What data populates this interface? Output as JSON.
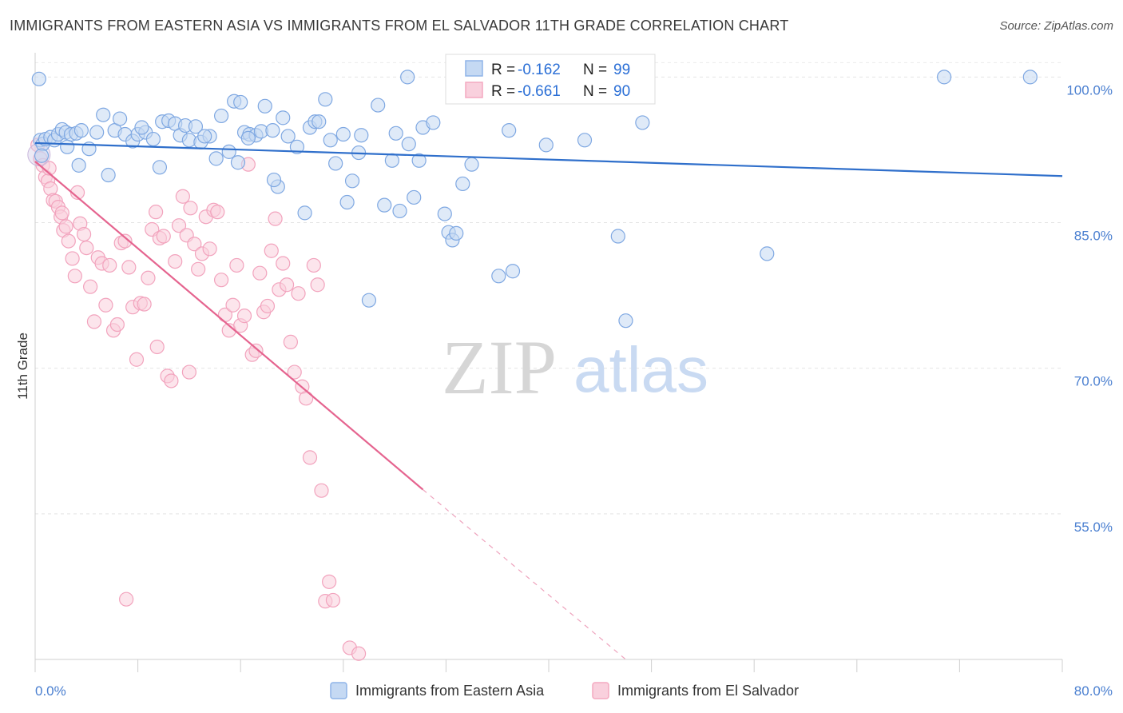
{
  "header": {
    "title": "IMMIGRANTS FROM EASTERN ASIA VS IMMIGRANTS FROM EL SALVADOR 11TH GRADE CORRELATION CHART",
    "source": "Source: ZipAtlas.com"
  },
  "watermark": {
    "zip": "ZIP",
    "atlas": "atlas"
  },
  "legend_box": {
    "r_label": "R =",
    "n_label": "N =",
    "rows": [
      {
        "r": "-0.162",
        "n": "99",
        "color": "#8fb4e8"
      },
      {
        "r": "-0.661",
        "n": "90",
        "color": "#f4a9c0"
      }
    ]
  },
  "bottom_legend": [
    {
      "label": "Immigrants from Eastern Asia",
      "color": "#8fb4e8"
    },
    {
      "label": "Immigrants from El Salvador",
      "color": "#f4a9c0"
    }
  ],
  "chart_data": {
    "type": "scatter",
    "title": "IMMIGRANTS FROM EASTERN ASIA VS IMMIGRANTS FROM EL SALVADOR 11TH GRADE CORRELATION CHART",
    "ylabel": "11th Grade",
    "xlim": [
      0,
      80
    ],
    "ylim": [
      40,
      102.5
    ],
    "x_tick_labels": [
      {
        "value": 0,
        "label": "0.0%"
      },
      {
        "value": 80,
        "label": "80.0%"
      }
    ],
    "x_minor_ticks": [
      0,
      8,
      16,
      24,
      32,
      40,
      48,
      56,
      64,
      72,
      80
    ],
    "y_ticks": [
      {
        "value": 100,
        "label": "100.0%"
      },
      {
        "value": 85,
        "label": "85.0%"
      },
      {
        "value": 70,
        "label": "70.0%"
      },
      {
        "value": 55,
        "label": "55.0%"
      }
    ],
    "grid": true,
    "legend_position": "top-center",
    "colors": {
      "blue": "#6a9ee0",
      "pink": "#ea6f98",
      "blue_fill": "#c5d9f3",
      "pink_fill": "#f9d0dd"
    },
    "series": [
      {
        "name": "Immigrants from Eastern Asia",
        "r": -0.162,
        "n": 99,
        "trend": {
          "x": [
            0,
            80
          ],
          "y": [
            93.2,
            89.8
          ]
        },
        "points": [
          [
            0.4,
            93.5
          ],
          [
            0.6,
            93.1
          ],
          [
            0.8,
            93.6
          ],
          [
            1.2,
            93.8
          ],
          [
            1.5,
            93.5
          ],
          [
            1.8,
            94.1
          ],
          [
            2.1,
            94.6
          ],
          [
            2.4,
            94.3
          ],
          [
            2.8,
            94.1
          ],
          [
            3.2,
            94.2
          ],
          [
            3.6,
            94.5
          ],
          [
            4.2,
            92.6
          ],
          [
            5.3,
            96.1
          ],
          [
            6.2,
            94.5
          ],
          [
            6.6,
            95.7
          ],
          [
            7.0,
            94.1
          ],
          [
            7.6,
            93.4
          ],
          [
            8.0,
            94.1
          ],
          [
            8.6,
            94.3
          ],
          [
            9.2,
            93.6
          ],
          [
            9.9,
            95.4
          ],
          [
            10.4,
            95.5
          ],
          [
            10.9,
            95.2
          ],
          [
            11.3,
            94.0
          ],
          [
            11.7,
            95.0
          ],
          [
            12.0,
            93.5
          ],
          [
            12.5,
            94.9
          ],
          [
            12.9,
            93.3
          ],
          [
            13.6,
            93.9
          ],
          [
            14.1,
            91.6
          ],
          [
            14.5,
            96.0
          ],
          [
            15.1,
            92.3
          ],
          [
            15.5,
            97.5
          ],
          [
            16.0,
            97.4
          ],
          [
            16.3,
            94.3
          ],
          [
            16.7,
            94.1
          ],
          [
            17.2,
            94.0
          ],
          [
            17.6,
            94.4
          ],
          [
            17.9,
            97.0
          ],
          [
            18.5,
            94.5
          ],
          [
            18.9,
            88.7
          ],
          [
            19.3,
            95.8
          ],
          [
            19.7,
            93.9
          ],
          [
            20.4,
            92.8
          ],
          [
            21.0,
            86.0
          ],
          [
            21.4,
            94.8
          ],
          [
            21.8,
            95.4
          ],
          [
            22.1,
            95.4
          ],
          [
            22.6,
            97.7
          ],
          [
            23.0,
            93.5
          ],
          [
            23.4,
            91.1
          ],
          [
            24.0,
            94.1
          ],
          [
            24.3,
            87.1
          ],
          [
            24.7,
            89.3
          ],
          [
            25.2,
            92.2
          ],
          [
            26.0,
            77.0
          ],
          [
            26.7,
            97.1
          ],
          [
            27.2,
            86.8
          ],
          [
            27.8,
            91.4
          ],
          [
            28.1,
            94.2
          ],
          [
            28.4,
            86.2
          ],
          [
            29.1,
            93.1
          ],
          [
            29.5,
            87.6
          ],
          [
            29.9,
            91.4
          ],
          [
            30.2,
            94.8
          ],
          [
            31.0,
            95.3
          ],
          [
            31.9,
            85.9
          ],
          [
            32.2,
            84.0
          ],
          [
            32.5,
            83.2
          ],
          [
            32.8,
            83.9
          ],
          [
            33.3,
            89.0
          ],
          [
            34.0,
            91.0
          ],
          [
            36.1,
            79.5
          ],
          [
            36.9,
            94.5
          ],
          [
            37.2,
            80.0
          ],
          [
            39.8,
            93.0
          ],
          [
            42.8,
            93.5
          ],
          [
            45.4,
            83.6
          ],
          [
            46.0,
            74.9
          ],
          [
            47.3,
            95.3
          ],
          [
            57.0,
            81.8
          ],
          [
            70.8,
            100.0
          ],
          [
            77.5,
            100.0
          ],
          [
            0.3,
            99.8
          ],
          [
            0.5,
            91.9
          ],
          [
            3.4,
            90.9
          ],
          [
            5.7,
            89.9
          ],
          [
            9.7,
            90.7
          ],
          [
            18.6,
            89.4
          ],
          [
            2.5,
            92.8
          ],
          [
            4.8,
            94.3
          ],
          [
            8.3,
            94.8
          ],
          [
            15.8,
            91.2
          ],
          [
            29.0,
            100.0
          ],
          [
            36.5,
            100.0
          ],
          [
            38.0,
            100.0
          ],
          [
            25.4,
            94.0
          ],
          [
            16.6,
            93.7
          ],
          [
            13.2,
            93.9
          ]
        ]
      },
      {
        "name": "Immigrants from El Salvador",
        "r": -0.661,
        "n": 90,
        "trend": {
          "x": [
            0,
            30.2
          ],
          "y": [
            91.3,
            57.5
          ]
        },
        "trend_extension": {
          "x": [
            30.2,
            46.0
          ],
          "y": [
            57.5,
            40.0
          ]
        },
        "points": [
          [
            0.2,
            93.0
          ],
          [
            0.4,
            91.6
          ],
          [
            0.6,
            90.9
          ],
          [
            0.8,
            89.7
          ],
          [
            1.0,
            89.3
          ],
          [
            1.2,
            88.5
          ],
          [
            1.4,
            87.3
          ],
          [
            1.6,
            87.2
          ],
          [
            1.8,
            86.6
          ],
          [
            2.0,
            85.6
          ],
          [
            2.2,
            84.2
          ],
          [
            2.4,
            84.6
          ],
          [
            2.6,
            83.1
          ],
          [
            2.9,
            81.3
          ],
          [
            3.1,
            79.5
          ],
          [
            3.3,
            88.1
          ],
          [
            3.5,
            84.9
          ],
          [
            3.8,
            83.8
          ],
          [
            4.0,
            82.4
          ],
          [
            4.3,
            78.4
          ],
          [
            4.6,
            74.8
          ],
          [
            4.9,
            81.4
          ],
          [
            5.2,
            80.8
          ],
          [
            5.5,
            76.5
          ],
          [
            5.8,
            80.6
          ],
          [
            6.1,
            73.9
          ],
          [
            6.4,
            74.5
          ],
          [
            6.7,
            82.9
          ],
          [
            7.0,
            83.1
          ],
          [
            7.3,
            80.4
          ],
          [
            7.6,
            76.3
          ],
          [
            7.9,
            70.9
          ],
          [
            8.2,
            76.7
          ],
          [
            8.5,
            76.6
          ],
          [
            8.8,
            79.3
          ],
          [
            9.1,
            84.3
          ],
          [
            9.4,
            86.1
          ],
          [
            9.7,
            83.4
          ],
          [
            10.0,
            83.6
          ],
          [
            10.3,
            69.2
          ],
          [
            10.6,
            68.7
          ],
          [
            10.9,
            81.0
          ],
          [
            11.2,
            84.7
          ],
          [
            11.5,
            87.7
          ],
          [
            11.8,
            83.7
          ],
          [
            12.1,
            86.5
          ],
          [
            12.4,
            82.8
          ],
          [
            12.7,
            80.2
          ],
          [
            13.0,
            81.8
          ],
          [
            13.3,
            85.6
          ],
          [
            13.6,
            82.3
          ],
          [
            13.9,
            86.3
          ],
          [
            14.2,
            86.1
          ],
          [
            14.5,
            79.1
          ],
          [
            14.8,
            75.5
          ],
          [
            15.1,
            73.9
          ],
          [
            15.4,
            76.5
          ],
          [
            15.7,
            80.6
          ],
          [
            16.0,
            74.4
          ],
          [
            16.3,
            75.4
          ],
          [
            16.6,
            91.0
          ],
          [
            16.9,
            71.4
          ],
          [
            17.2,
            71.8
          ],
          [
            17.5,
            79.8
          ],
          [
            17.8,
            75.8
          ],
          [
            18.1,
            76.4
          ],
          [
            18.4,
            82.1
          ],
          [
            18.7,
            85.4
          ],
          [
            19.0,
            78.1
          ],
          [
            19.3,
            80.8
          ],
          [
            19.6,
            78.6
          ],
          [
            19.9,
            72.7
          ],
          [
            20.2,
            69.6
          ],
          [
            20.5,
            77.7
          ],
          [
            20.8,
            68.1
          ],
          [
            21.1,
            66.9
          ],
          [
            21.4,
            60.8
          ],
          [
            21.7,
            80.6
          ],
          [
            22.0,
            78.6
          ],
          [
            22.3,
            57.4
          ],
          [
            22.6,
            46.0
          ],
          [
            22.9,
            48.0
          ],
          [
            23.2,
            46.1
          ],
          [
            24.5,
            41.2
          ],
          [
            25.2,
            40.6
          ],
          [
            7.1,
            46.2
          ],
          [
            9.5,
            72.2
          ],
          [
            12.0,
            69.6
          ],
          [
            2.1,
            86.0
          ],
          [
            1.1,
            90.6
          ]
        ]
      }
    ]
  }
}
